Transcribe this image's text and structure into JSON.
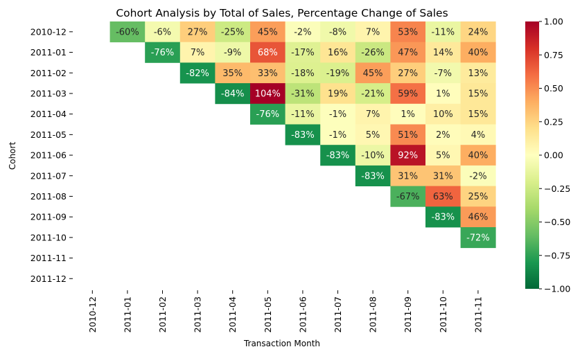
{
  "chart_data": {
    "type": "heatmap",
    "title": "Cohort Analysis by Total of Sales, Percentage Change of Sales",
    "xlabel": "Transaction Month",
    "ylabel": "Cohort",
    "columns": [
      "2010-12",
      "2011-01",
      "2011-02",
      "2011-03",
      "2011-04",
      "2011-05",
      "2011-06",
      "2011-07",
      "2011-08",
      "2011-09",
      "2011-10",
      "2011-11"
    ],
    "rows": [
      "2010-12",
      "2011-01",
      "2011-02",
      "2011-03",
      "2011-04",
      "2011-05",
      "2011-06",
      "2011-07",
      "2011-08",
      "2011-09",
      "2011-10",
      "2011-11",
      "2011-12"
    ],
    "values": [
      [
        null,
        -0.6,
        -0.06,
        0.27,
        -0.25,
        0.45,
        -0.02,
        -0.08,
        0.07,
        0.53,
        -0.11,
        0.24
      ],
      [
        null,
        null,
        -0.76,
        0.07,
        -0.09,
        0.68,
        -0.17,
        0.16,
        -0.26,
        0.47,
        0.14,
        0.4
      ],
      [
        null,
        null,
        null,
        -0.82,
        0.35,
        0.33,
        -0.18,
        -0.19,
        0.45,
        0.27,
        -0.07,
        0.13
      ],
      [
        null,
        null,
        null,
        null,
        -0.84,
        1.04,
        -0.31,
        0.19,
        -0.21,
        0.59,
        0.01,
        0.15
      ],
      [
        null,
        null,
        null,
        null,
        null,
        -0.76,
        -0.11,
        -0.01,
        0.07,
        0.01,
        0.1,
        0.15
      ],
      [
        null,
        null,
        null,
        null,
        null,
        null,
        -0.83,
        -0.01,
        0.05,
        0.51,
        0.02,
        0.04
      ],
      [
        null,
        null,
        null,
        null,
        null,
        null,
        null,
        -0.83,
        -0.1,
        0.92,
        0.05,
        0.4
      ],
      [
        null,
        null,
        null,
        null,
        null,
        null,
        null,
        null,
        -0.83,
        0.31,
        0.31,
        -0.02
      ],
      [
        null,
        null,
        null,
        null,
        null,
        null,
        null,
        null,
        null,
        -0.67,
        0.63,
        0.25
      ],
      [
        null,
        null,
        null,
        null,
        null,
        null,
        null,
        null,
        null,
        null,
        -0.83,
        0.46
      ],
      [
        null,
        null,
        null,
        null,
        null,
        null,
        null,
        null,
        null,
        null,
        null,
        -0.72
      ],
      [
        null,
        null,
        null,
        null,
        null,
        null,
        null,
        null,
        null,
        null,
        null,
        null
      ],
      [
        null,
        null,
        null,
        null,
        null,
        null,
        null,
        null,
        null,
        null,
        null,
        null
      ]
    ],
    "colormap": "RdYlGn_r",
    "vmin": -1.0,
    "vmax": 1.0,
    "colorbar_ticks": [
      1.0,
      0.75,
      0.5,
      0.25,
      0.0,
      -0.25,
      -0.5,
      -0.75,
      -1.0
    ],
    "colorbar_tick_labels": [
      "1.00",
      "0.75",
      "0.50",
      "0.25",
      "0.00",
      "−0.25",
      "−0.50",
      "−0.75",
      "−1.00"
    ],
    "annotation_format": "percent",
    "grid": false
  }
}
